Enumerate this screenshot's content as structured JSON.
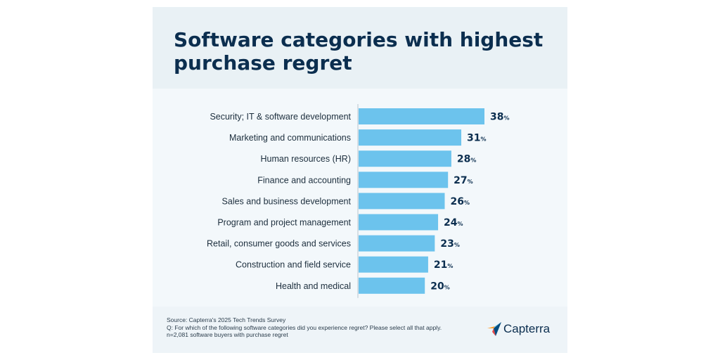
{
  "title": "Software categories with highest purchase regret",
  "chart_data": {
    "type": "bar",
    "orientation": "horizontal",
    "categories": [
      "Security; IT & software development",
      "Marketing and communications",
      "Human resources (HR)",
      "Finance and accounting",
      "Sales and business development",
      "Program and project management",
      "Retail, consumer goods and services",
      "Construction and field service",
      "Health and medical"
    ],
    "values": [
      38,
      31,
      28,
      27,
      26,
      24,
      23,
      21,
      20
    ],
    "value_suffix": "%",
    "title": "Software categories with highest purchase regret",
    "xlabel": "",
    "ylabel": "",
    "xlim": [
      0,
      38
    ],
    "grid": false,
    "bar_color": "#6cc3ed",
    "label_color": "#0b2e4f"
  },
  "footer": {
    "source": "Source: Capterra's 2025 Tech Trends Survey",
    "question": "Q: For which of the following software categories did you experience regret? Please select all that apply.",
    "sample": "n=2,081 software buyers with purchase regret"
  },
  "logo": {
    "text": "Capterra",
    "icon": "capterra-arrow-icon",
    "colors": [
      "#ff9d28",
      "#68c5ed",
      "#044d80",
      "#e54747"
    ]
  }
}
